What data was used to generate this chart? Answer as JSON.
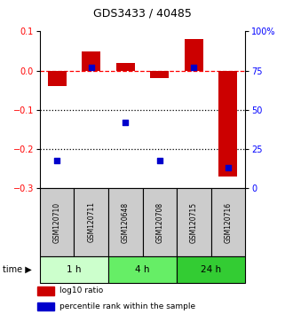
{
  "title": "GDS3433 / 40485",
  "samples": [
    "GSM120710",
    "GSM120711",
    "GSM120648",
    "GSM120708",
    "GSM120715",
    "GSM120716"
  ],
  "log10_ratio": [
    -0.04,
    0.05,
    0.02,
    -0.02,
    0.08,
    -0.27
  ],
  "percentile_rank": [
    18,
    77,
    42,
    18,
    77,
    13
  ],
  "left_ylim": [
    -0.3,
    0.1
  ],
  "right_ylim": [
    0,
    100
  ],
  "left_yticks": [
    0.1,
    0.0,
    -0.1,
    -0.2,
    -0.3
  ],
  "right_yticks": [
    100,
    75,
    50,
    25,
    0
  ],
  "right_yticklabels": [
    "100%",
    "75",
    "50",
    "25",
    "0"
  ],
  "dotted_lines": [
    -0.1,
    -0.2
  ],
  "bar_color": "#cc0000",
  "scatter_color": "#0000cc",
  "bar_width": 0.55,
  "time_groups": [
    {
      "label": "1 h",
      "start": 0,
      "end": 2,
      "color": "#ccffcc"
    },
    {
      "label": "4 h",
      "start": 2,
      "end": 4,
      "color": "#66ee66"
    },
    {
      "label": "24 h",
      "start": 4,
      "end": 6,
      "color": "#33cc33"
    }
  ],
  "legend_items": [
    {
      "label": "log10 ratio",
      "color": "#cc0000"
    },
    {
      "label": "percentile rank within the sample",
      "color": "#0000cc"
    }
  ],
  "bg_color": "#ffffff",
  "sample_label_bg": "#cccccc",
  "time_label": "time"
}
